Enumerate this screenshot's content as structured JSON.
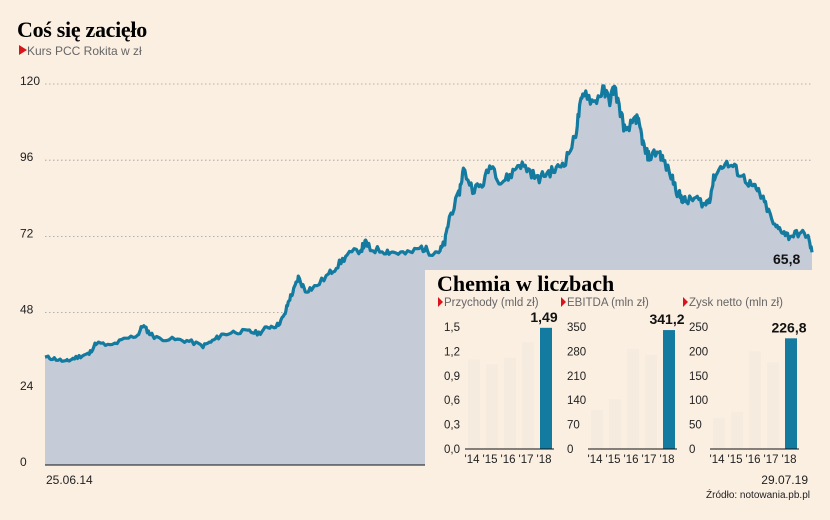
{
  "header": {
    "title": "Coś się zacięło",
    "subtitle": "Kurs PCC Rokita w zł"
  },
  "source": "Źródło: notowania.pb.pl",
  "colors": {
    "background": "#fbefe2",
    "area": "#c5ccd7",
    "line": "#137aa0",
    "marker": "#d9141a",
    "bar_past": "#f6ebdf",
    "bar_last": "#137aa0"
  },
  "chart_data": [
    {
      "type": "area",
      "title": "Coś się zacięło",
      "subtitle": "Kurs PCC Rokita w zł",
      "x_start": "25.06.14",
      "x_end": "29.07.19",
      "ylim": [
        0,
        120
      ],
      "yticks": [
        0,
        24,
        48,
        72,
        96,
        120
      ],
      "last_value": 65.8,
      "last_label": "65,8",
      "points": [
        [
          0,
          34
        ],
        [
          0.02,
          33.5
        ],
        [
          0.045,
          32.5
        ],
        [
          0.06,
          33.5
        ],
        [
          0.08,
          34.5
        ],
        [
          0.095,
          35
        ],
        [
          0.11,
          38.5
        ],
        [
          0.14,
          37.5
        ],
        [
          0.17,
          39.5
        ],
        [
          0.2,
          41
        ],
        [
          0.21,
          44
        ],
        [
          0.225,
          41.5
        ],
        [
          0.24,
          40
        ],
        [
          0.28,
          39.5
        ],
        [
          0.31,
          39
        ],
        [
          0.34,
          37.5
        ],
        [
          0.36,
          39
        ],
        [
          0.38,
          41
        ],
        [
          0.41,
          42
        ],
        [
          0.44,
          42
        ],
        [
          0.46,
          41.5
        ],
        [
          0.48,
          43.5
        ],
        [
          0.5,
          44
        ],
        [
          0.515,
          47
        ],
        [
          0.525,
          52
        ],
        [
          0.535,
          55
        ],
        [
          0.545,
          59
        ],
        [
          0.56,
          55
        ],
        [
          0.58,
          56
        ],
        [
          0.61,
          60
        ],
        [
          0.63,
          63
        ],
        [
          0.65,
          66
        ],
        [
          0.68,
          68
        ],
        [
          0.69,
          70
        ],
        [
          0.7,
          68
        ],
        [
          0.73,
          67.5
        ],
        [
          0.75,
          67
        ],
        [
          0.78,
          66.5
        ],
        [
          0.81,
          68.5
        ],
        [
          0.83,
          67
        ],
        [
          0.85,
          67.5
        ],
        [
          0.86,
          70
        ],
        [
          0.87,
          78
        ],
        [
          0.89,
          85
        ],
        [
          0.9,
          93
        ],
        [
          0.92,
          87
        ],
        [
          0.94,
          88
        ],
        [
          0.96,
          95
        ],
        [
          0.98,
          89
        ],
        [
          1.0,
          91
        ],
        [
          1.02,
          95
        ],
        [
          1.04,
          93
        ],
        [
          1.06,
          90
        ],
        [
          1.08,
          92
        ],
        [
          1.1,
          93
        ],
        [
          1.12,
          96
        ],
        [
          1.14,
          103
        ],
        [
          1.15,
          112
        ],
        [
          1.16,
          118
        ],
        [
          1.18,
          114
        ],
        [
          1.2,
          118
        ],
        [
          1.215,
          115
        ],
        [
          1.225,
          119
        ],
        [
          1.24,
          110
        ],
        [
          1.25,
          104
        ],
        [
          1.27,
          110
        ],
        [
          1.28,
          106
        ],
        [
          1.29,
          99
        ],
        [
          1.3,
          97
        ],
        [
          1.32,
          99
        ],
        [
          1.33,
          96
        ],
        [
          1.35,
          90
        ],
        [
          1.36,
          86
        ],
        [
          1.37,
          84
        ],
        [
          1.38,
          83
        ],
        [
          1.4,
          84
        ],
        [
          1.42,
          82
        ],
        [
          1.43,
          84
        ],
        [
          1.44,
          91
        ],
        [
          1.46,
          95
        ],
        [
          1.48,
          94
        ],
        [
          1.5,
          91
        ],
        [
          1.52,
          88
        ],
        [
          1.535,
          86
        ],
        [
          1.55,
          82
        ],
        [
          1.57,
          75
        ],
        [
          1.585,
          74
        ],
        [
          1.6,
          72
        ],
        [
          1.62,
          73
        ],
        [
          1.64,
          72.5
        ],
        [
          1.65,
          67
        ]
      ]
    },
    {
      "type": "bar",
      "group_title": "Chemia w liczbach",
      "subtitle": "Przychody (mld zł)",
      "categories": [
        "'14",
        "'15",
        "'16",
        "'17",
        "'18"
      ],
      "values": [
        1.1,
        1.04,
        1.12,
        1.31,
        1.49
      ],
      "highlight_label": "1,49",
      "ylim": [
        0,
        1.5
      ],
      "yticks": [
        "0,0",
        "0,3",
        "0,6",
        "0,9",
        "1,2",
        "1,5"
      ]
    },
    {
      "type": "bar",
      "subtitle": "EBITDA (mln zł)",
      "categories": [
        "'14",
        "'15",
        "'16",
        "'17",
        "'18"
      ],
      "values": [
        112,
        143,
        288,
        270,
        341.2
      ],
      "highlight_label": "341,2",
      "ylim": [
        0,
        350
      ],
      "yticks": [
        "0",
        "70",
        "140",
        "210",
        "280",
        "350"
      ]
    },
    {
      "type": "bar",
      "subtitle": "Zysk netto (mln zł)",
      "categories": [
        "'14",
        "'15",
        "'16",
        "'17",
        "'18"
      ],
      "values": [
        63,
        76,
        200,
        178,
        226.8
      ],
      "highlight_label": "226,8",
      "ylim": [
        0,
        250
      ],
      "yticks": [
        "0",
        "50",
        "100",
        "150",
        "200",
        "250"
      ]
    }
  ]
}
